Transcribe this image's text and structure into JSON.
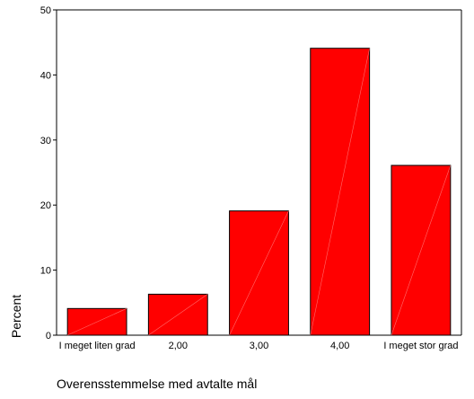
{
  "chart_data": {
    "type": "bar",
    "categories": [
      "I meget liten grad",
      "2,00",
      "3,00",
      "4,00",
      "I meget stor grad"
    ],
    "values": [
      4.1,
      6.3,
      19.1,
      44.1,
      26.1
    ],
    "xlabel": "Overensstemmelse med avtalte mål",
    "ylabel": "Percent",
    "ylim": [
      0,
      50
    ],
    "yticks": [
      0,
      10,
      20,
      30,
      40,
      50
    ],
    "grid": false,
    "bar_color": "#ff0000",
    "bar_edge_color": "#000000"
  }
}
